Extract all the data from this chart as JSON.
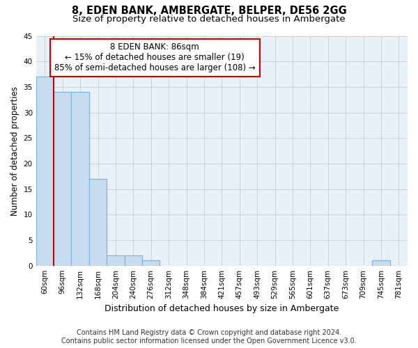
{
  "title": "8, EDEN BANK, AMBERGATE, BELPER, DE56 2GG",
  "subtitle": "Size of property relative to detached houses in Ambergate",
  "xlabel": "Distribution of detached houses by size in Ambergate",
  "ylabel": "Number of detached properties",
  "footer_line1": "Contains HM Land Registry data © Crown copyright and database right 2024.",
  "footer_line2": "Contains public sector information licensed under the Open Government Licence v3.0.",
  "categories": [
    "60sqm",
    "96sqm",
    "132sqm",
    "168sqm",
    "204sqm",
    "240sqm",
    "276sqm",
    "312sqm",
    "348sqm",
    "384sqm",
    "421sqm",
    "457sqm",
    "493sqm",
    "529sqm",
    "565sqm",
    "601sqm",
    "637sqm",
    "673sqm",
    "709sqm",
    "745sqm",
    "781sqm"
  ],
  "values": [
    37,
    34,
    34,
    17,
    2,
    2,
    1,
    0,
    0,
    0,
    0,
    0,
    0,
    0,
    0,
    0,
    0,
    0,
    0,
    1,
    0
  ],
  "bar_color": "#c8dcf0",
  "bar_edgecolor": "#7ab0d8",
  "bar_linewidth": 0.8,
  "annotation_line1": "8 EDEN BANK: 86sqm",
  "annotation_line2": "← 15% of detached houses are smaller (19)",
  "annotation_line3": "85% of semi-detached houses are larger (108) →",
  "annotation_box_edgecolor": "#cc0000",
  "annotation_box_facecolor": "white",
  "vline_color": "#cc0000",
  "ylim": [
    0,
    45
  ],
  "yticks": [
    0,
    5,
    10,
    15,
    20,
    25,
    30,
    35,
    40,
    45
  ],
  "grid_color": "#cccccc",
  "bg_color": "#e8f0f8",
  "title_fontsize": 10.5,
  "subtitle_fontsize": 9.5,
  "xlabel_fontsize": 9,
  "ylabel_fontsize": 8.5,
  "tick_fontsize": 7.5,
  "annot_fontsize": 8.5,
  "footer_fontsize": 7
}
